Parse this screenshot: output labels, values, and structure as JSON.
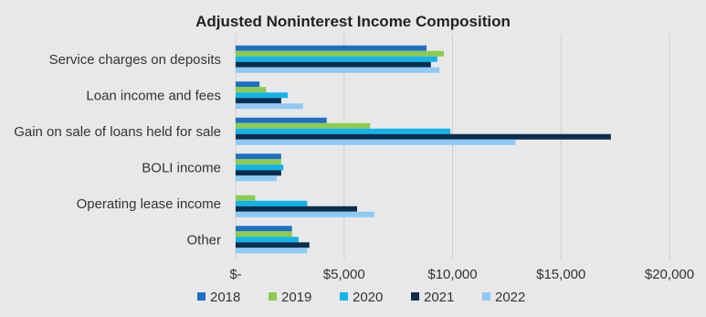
{
  "chart_data": {
    "type": "bar",
    "orientation": "horizontal",
    "title": "Adjusted Noninterest Income Composition",
    "categories": [
      "Service charges on deposits",
      "Loan income and fees",
      "Gain on sale of loans held for sale",
      "BOLI income",
      "Operating lease income",
      "Other"
    ],
    "series": [
      {
        "name": "2018",
        "color": "#1f6fc5",
        "values": [
          8800,
          1100,
          4200,
          2100,
          0,
          2600
        ]
      },
      {
        "name": "2019",
        "color": "#8dcb4e",
        "values": [
          9600,
          1400,
          6200,
          2100,
          900,
          2600
        ]
      },
      {
        "name": "2020",
        "color": "#10b4ea",
        "values": [
          9300,
          2400,
          9900,
          2200,
          3300,
          2900
        ]
      },
      {
        "name": "2021",
        "color": "#0d2d4f",
        "values": [
          9000,
          2100,
          17300,
          2100,
          5600,
          3400
        ]
      },
      {
        "name": "2022",
        "color": "#8ec9f5",
        "values": [
          9400,
          3100,
          12900,
          1900,
          6400,
          3300
        ]
      }
    ],
    "xlim": [
      0,
      20000
    ],
    "xticks": [
      0,
      5000,
      10000,
      15000,
      20000
    ],
    "xtick_labels": [
      "$-",
      "$5,000",
      "$10,000",
      "$15,000",
      "$20,000"
    ],
    "grid": "vertical",
    "legend": "bottom"
  }
}
